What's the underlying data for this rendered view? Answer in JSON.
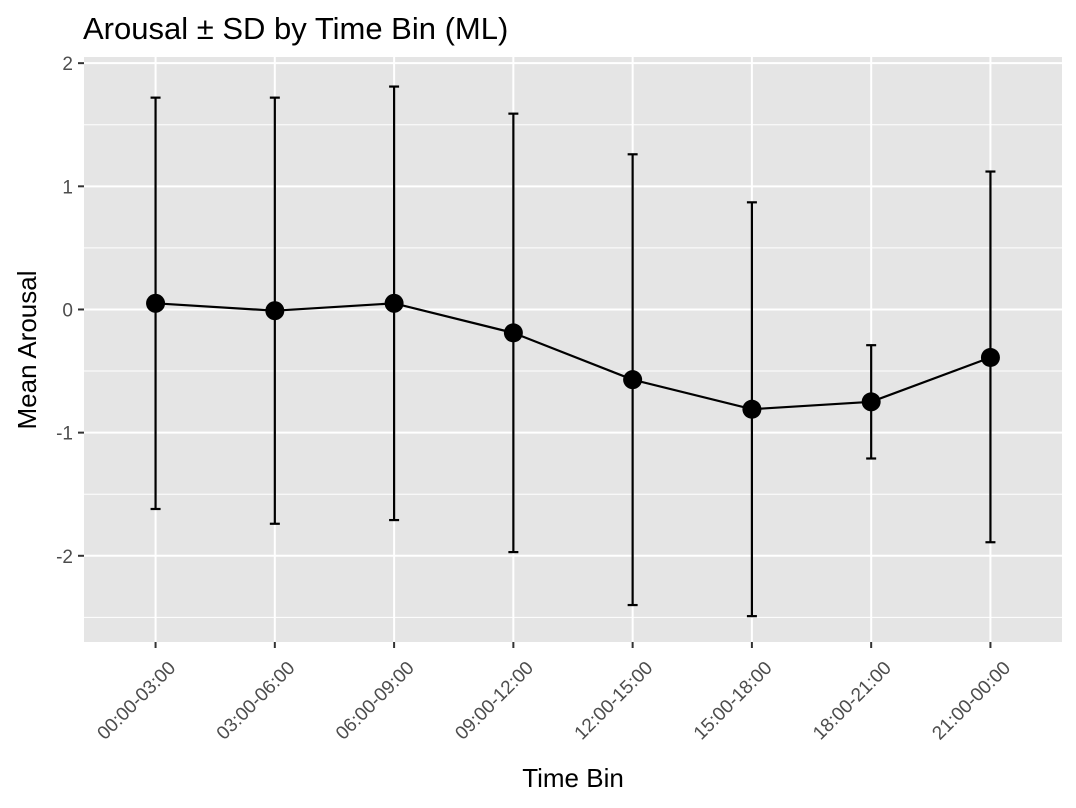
{
  "chart_data": {
    "type": "line",
    "title": "Arousal ± SD by Time Bin (ML)",
    "xlabel": "Time Bin",
    "ylabel": "Mean Arousal",
    "categories": [
      "00:00-03:00",
      "03:00-06:00",
      "06:00-09:00",
      "09:00-12:00",
      "12:00-15:00",
      "15:00-18:00",
      "18:00-21:00",
      "21:00-00:00"
    ],
    "series": [
      {
        "values": [
          0.05,
          -0.01,
          0.05,
          -0.19,
          -0.57,
          -0.81,
          -0.75,
          -0.39
        ],
        "sd_upper": [
          1.72,
          1.72,
          1.81,
          1.59,
          1.26,
          0.87,
          -0.29,
          1.12
        ],
        "sd_lower": [
          -1.62,
          -1.74,
          -1.71,
          -1.97,
          -2.4,
          -2.49,
          -1.21,
          -1.89
        ]
      }
    ],
    "ylim": [
      -2.7,
      2.05
    ],
    "yticks": [
      -2,
      -1,
      0,
      1,
      2
    ],
    "grid": true,
    "colors": {
      "panel": "#e5e5e5",
      "grid": "#ffffff",
      "series": "#000000",
      "tick_label": "#4d4d4d",
      "tick_mark": "#333333"
    }
  }
}
